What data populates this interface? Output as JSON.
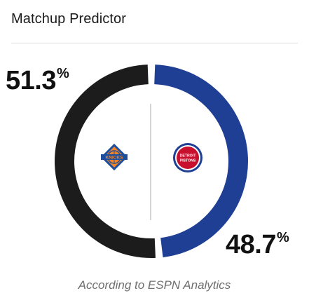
{
  "widget": {
    "title": "Matchup Predictor",
    "footer": "According to ESPN Analytics"
  },
  "teams": [
    {
      "team_id": "knicks",
      "logo_icon": "knicks-logo-icon",
      "percent": "51.3",
      "color": "#1c1c1c"
    },
    {
      "team_id": "pistons",
      "logo_icon": "pistons-logo-icon",
      "percent": "48.7",
      "color": "#1e3f93"
    }
  ],
  "percent_symbol": "%",
  "logo_text": {
    "knicks": "KNICKS",
    "pistons_top": "DETROIT",
    "pistons_bottom": "PISTONS"
  },
  "chart_data": {
    "type": "pie",
    "categories": [
      "Knicks",
      "Pistons"
    ],
    "values": [
      51.3,
      48.7
    ],
    "colors": [
      "#1c1c1c",
      "#1e3f93"
    ],
    "title": "Matchup Predictor"
  }
}
